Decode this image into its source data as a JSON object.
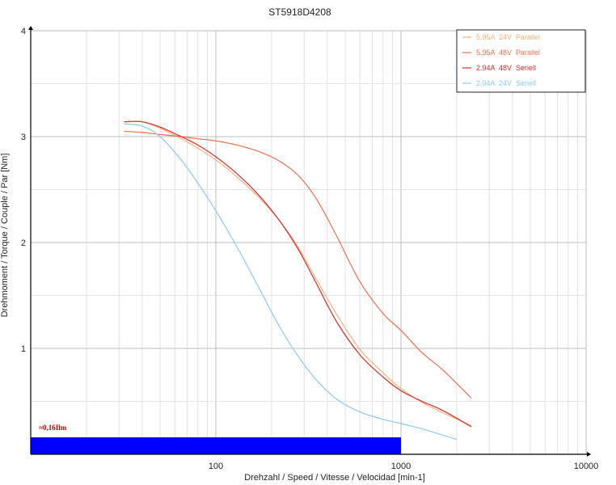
{
  "chart_data": {
    "type": "line",
    "title": "ST5918D4208",
    "xlabel": "Drehzahl / Speed / Vitesse / Velocidad [min-1]",
    "ylabel": "Drehmoment / Torque / Couple / Par [Nm]",
    "x_scale": "log",
    "xlim": [
      10,
      10000
    ],
    "ylim": [
      0,
      4
    ],
    "x_ticks": [
      {
        "value": 100,
        "label": "100"
      },
      {
        "value": 1000,
        "label": "1000"
      },
      {
        "value": 10000,
        "label": "10000"
      }
    ],
    "y_ticks": [
      {
        "value": 1,
        "label": "1"
      },
      {
        "value": 2,
        "label": "2"
      },
      {
        "value": 3,
        "label": "3"
      },
      {
        "value": 4,
        "label": "4"
      }
    ],
    "grid": true,
    "legend_position": "top-right",
    "series": [
      {
        "name": "5.95A  24V  Parallel",
        "color": "#f5b07a",
        "x": [
          32,
          40,
          50,
          65,
          80,
          100,
          130,
          170,
          220,
          280,
          350,
          450,
          600,
          800,
          1000,
          1300,
          1700,
          2400
        ],
        "y": [
          3.14,
          3.14,
          3.08,
          2.98,
          2.89,
          2.78,
          2.62,
          2.43,
          2.21,
          1.95,
          1.65,
          1.32,
          0.99,
          0.77,
          0.62,
          0.49,
          0.39,
          0.27
        ]
      },
      {
        "name": "5.95A  48V  Parallel",
        "color": "#f07050",
        "x": [
          32,
          40,
          50,
          65,
          80,
          100,
          130,
          170,
          220,
          280,
          350,
          450,
          600,
          800,
          1000,
          1300,
          1700,
          2400
        ],
        "y": [
          3.05,
          3.04,
          3.02,
          3.0,
          2.98,
          2.96,
          2.92,
          2.86,
          2.77,
          2.63,
          2.41,
          2.06,
          1.63,
          1.33,
          1.17,
          0.96,
          0.79,
          0.53
        ]
      },
      {
        "name": "2.94A  48V  Seriell",
        "color": "#d03030",
        "x": [
          32,
          40,
          50,
          65,
          80,
          100,
          130,
          170,
          220,
          280,
          350,
          450,
          600,
          800,
          1000,
          1300,
          1700,
          2400
        ],
        "y": [
          3.14,
          3.14,
          3.09,
          3.0,
          2.92,
          2.81,
          2.65,
          2.45,
          2.21,
          1.93,
          1.61,
          1.25,
          0.94,
          0.73,
          0.6,
          0.5,
          0.41,
          0.26
        ]
      },
      {
        "name": "2.94A  24V  Seriell",
        "color": "#8ec8f0",
        "x": [
          32,
          40,
          50,
          65,
          80,
          100,
          130,
          170,
          220,
          280,
          350,
          450,
          600,
          800,
          1000,
          1300,
          2000
        ],
        "y": [
          3.12,
          3.1,
          3.0,
          2.78,
          2.56,
          2.3,
          1.96,
          1.58,
          1.21,
          0.92,
          0.7,
          0.52,
          0.4,
          0.33,
          0.29,
          0.24,
          0.14
        ]
      }
    ],
    "annotation": {
      "text": "≈0,16Ilm",
      "color": "#cc0000",
      "bar_color": "#0000ff",
      "x_range": [
        10,
        1000
      ],
      "y_range": [
        0,
        0.16
      ]
    }
  }
}
